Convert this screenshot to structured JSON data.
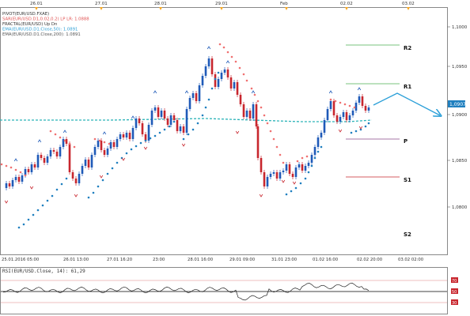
{
  "top_dates": [
    "26.01",
    "27.01",
    "28.01",
    "29.01",
    "Feb",
    "02.02",
    "03.02"
  ],
  "legend": [
    {
      "text": "PIVOT(EUR/USD.FXAE)",
      "color": "#333333"
    },
    {
      "text": "SAR(EUR/USD.D1,0.02,0.2)    LP  LR: 1.0888",
      "color": "#e05050"
    },
    {
      "text": "FRACTAL(EUR/USD)    Up  Dn",
      "color": "#333333"
    },
    {
      "text": "EMA(EUR/USD.D1.Close,50): 1.0891",
      "color": "#2e9fd6"
    },
    {
      "text": "EMA(EUR/USD.D1.Close,200): 1.0891",
      "color": "#555555"
    }
  ],
  "price_labels": [
    "1,1000",
    "1,0950",
    "1,0900",
    "1,0850",
    "1,0800"
  ],
  "current_price": "1,0907",
  "pivot_labels": {
    "r2": "R2",
    "r1": "R1",
    "p": "P",
    "s1": "S1",
    "s2": "S2"
  },
  "time_labels": [
    "25.01.2016 05:00",
    "26.01 13:00",
    "27.01 16:20",
    "23:00",
    "28.01 16:00",
    "29.01 09:00",
    "31.01 23:00",
    "01.02 16:00",
    "02.02 20:00",
    "03.02 02:00"
  ],
  "rsi": {
    "label": "RSI(EUR/USD.Close, 14): 61,29",
    "levels": [
      "70",
      "50",
      "30"
    ]
  },
  "colors": {
    "bull": "#1f5ab8",
    "bear": "#c8262e",
    "sar_bear": "#f07070",
    "sar_bull": "#1f7fbf",
    "ema": "#2bb3b8",
    "forecast": "#2a9fd8",
    "current_price_bg": "#1f7fbf"
  }
}
